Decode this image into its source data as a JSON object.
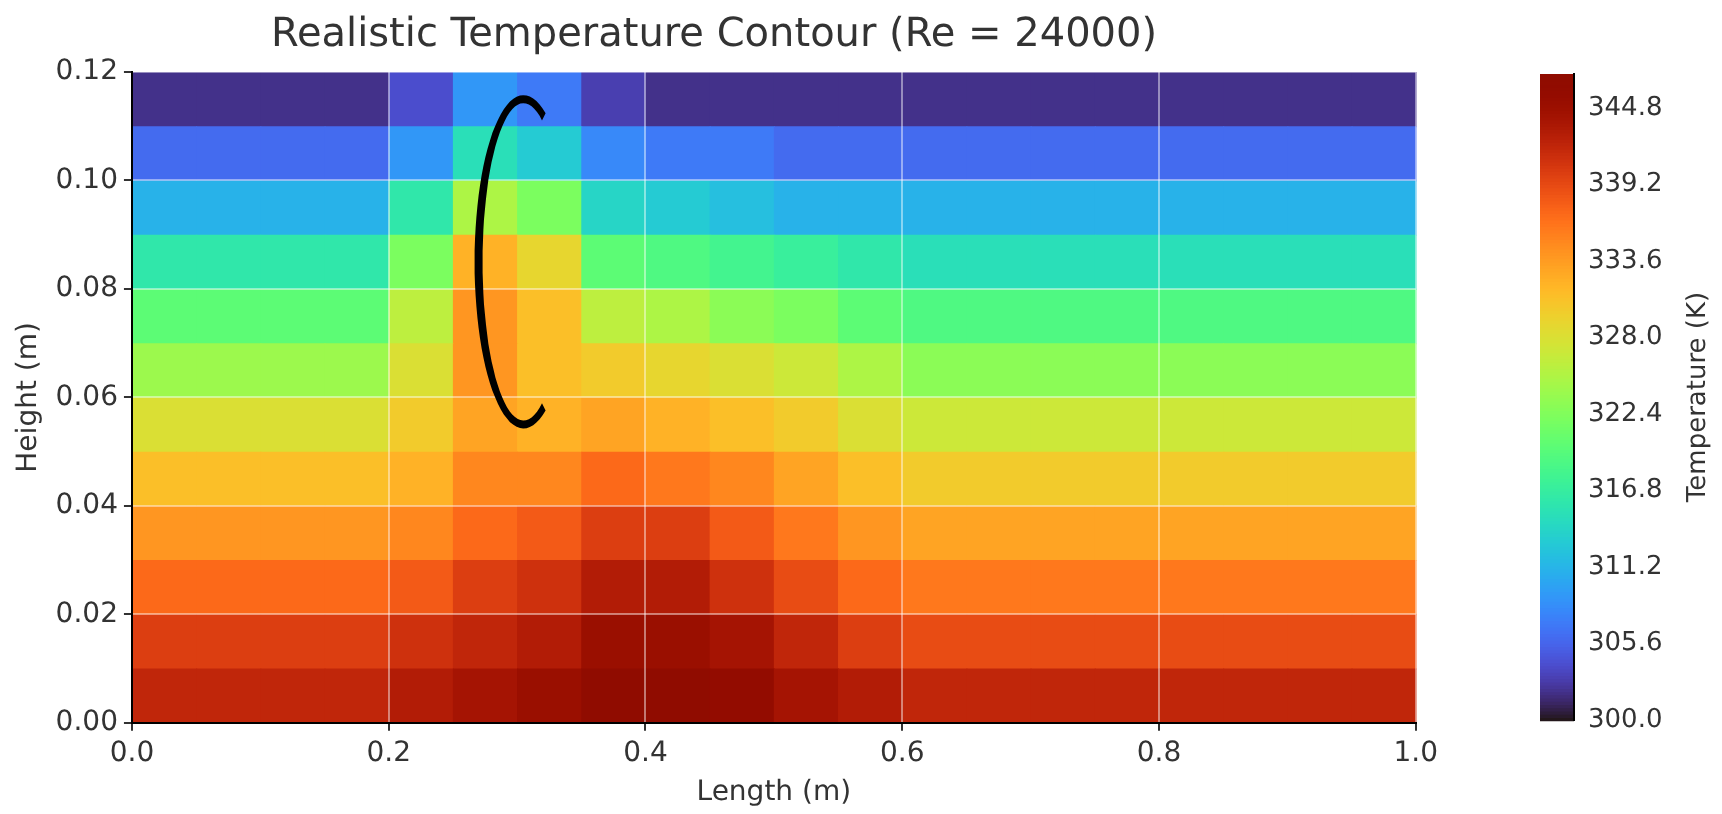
{
  "chart_data": {
    "type": "heatmap",
    "title": "Realistic Temperature Contour (Re = 24000)",
    "xlabel": "Length (m)",
    "ylabel": "Height (m)",
    "clabel": "Temperature (K)",
    "xlim": [
      0,
      1
    ],
    "ylim": [
      0,
      0.12
    ],
    "xticks": [
      {
        "value": 0,
        "label": "0.0"
      },
      {
        "value": 0.2,
        "label": "0.2"
      },
      {
        "value": 0.4,
        "label": "0.4"
      },
      {
        "value": 0.6,
        "label": "0.6"
      },
      {
        "value": 0.8,
        "label": "0.8"
      },
      {
        "value": 1,
        "label": "1.0"
      }
    ],
    "yticks": [
      {
        "value": 0,
        "label": "0.00"
      },
      {
        "value": 0.02,
        "label": "0.02"
      },
      {
        "value": 0.04,
        "label": "0.04"
      },
      {
        "value": 0.06,
        "label": "0.06"
      },
      {
        "value": 0.08,
        "label": "0.08"
      },
      {
        "value": 0.1,
        "label": "0.10"
      },
      {
        "value": 0.12,
        "label": "0.12"
      }
    ],
    "clim": [
      300,
      347.3
    ],
    "cticks": [
      {
        "value": 300,
        "label": "300.0"
      },
      305.6,
      311.2,
      316.8,
      322.4,
      {
        "value": 328,
        "label": "328.0"
      },
      333.6,
      339.2,
      344.8
    ],
    "grid": true,
    "cells": [
      [
        302,
        302,
        302,
        302,
        304,
        309,
        307,
        303,
        302,
        302,
        302,
        302,
        302,
        302,
        302,
        302,
        302,
        302,
        302,
        302
      ],
      [
        306,
        306,
        306,
        306,
        309,
        315,
        313,
        308,
        307,
        307,
        306,
        306,
        306,
        306,
        306,
        306,
        306,
        306,
        306,
        306
      ],
      [
        311,
        311,
        311,
        311,
        316,
        325,
        322,
        314,
        313,
        312,
        311,
        311,
        311,
        311,
        311,
        311,
        311,
        311,
        311,
        311
      ],
      [
        316,
        316,
        316,
        316,
        322,
        332,
        329,
        320,
        319,
        318,
        317,
        316,
        315,
        315,
        315,
        315,
        315,
        315,
        315,
        315
      ],
      [
        320,
        320,
        320,
        320,
        326,
        334,
        331,
        326,
        325,
        323,
        322,
        320,
        319,
        319,
        319,
        319,
        319,
        319,
        319,
        319
      ],
      [
        324,
        324,
        324,
        324,
        328,
        334,
        331,
        330,
        329,
        328,
        327,
        325,
        323,
        323,
        323,
        323,
        323,
        323,
        323,
        323
      ],
      [
        328,
        328,
        328,
        328,
        330,
        333,
        332,
        333,
        332,
        331,
        330,
        328,
        327,
        327,
        327,
        327,
        327,
        327,
        327,
        327
      ],
      [
        331,
        331,
        331,
        331,
        332,
        335,
        335,
        337,
        336,
        335,
        333,
        331,
        330,
        330,
        330,
        330,
        330,
        330,
        330,
        330
      ],
      [
        334,
        334,
        334,
        334,
        335,
        337,
        338,
        340,
        340,
        338,
        336,
        334,
        333,
        333,
        333,
        333,
        333,
        333,
        333,
        333
      ],
      [
        337,
        337,
        337,
        337,
        338,
        340,
        341,
        343,
        343,
        341,
        339,
        337,
        336,
        336,
        336,
        336,
        336,
        336,
        336,
        336
      ],
      [
        340,
        340,
        340,
        340,
        341,
        342,
        343,
        345,
        345,
        344,
        342,
        340,
        339,
        339,
        339,
        339,
        339,
        339,
        339,
        339
      ],
      [
        342,
        342,
        342,
        342,
        343,
        344,
        345,
        347,
        347,
        346,
        344,
        343,
        342,
        342,
        342,
        342,
        342,
        342,
        342,
        342
      ]
    ]
  }
}
